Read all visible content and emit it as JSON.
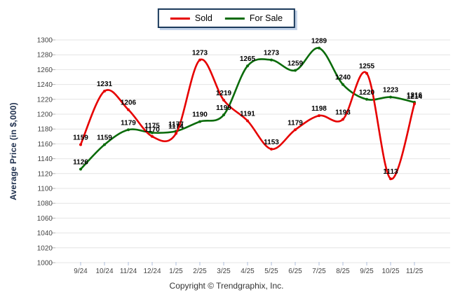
{
  "chart_data": {
    "type": "line",
    "title": "",
    "ylabel": "Average Price (in $,000)",
    "xlabel": "",
    "categories": [
      "9/24",
      "10/24",
      "11/24",
      "12/24",
      "1/25",
      "2/25",
      "3/25",
      "4/25",
      "5/25",
      "6/25",
      "7/25",
      "8/25",
      "9/25",
      "10/25",
      "11/25"
    ],
    "series": [
      {
        "name": "Sold",
        "color": "#e60000",
        "values": [
          1159,
          1231,
          1206,
          1170,
          1174,
          1273,
          1219,
          1191,
          1153,
          1179,
          1198,
          1193,
          1255,
          1113,
          1214
        ]
      },
      {
        "name": "For Sale",
        "color": "#0a6b0a",
        "values": [
          1126,
          1159,
          1179,
          1175,
          1177,
          1190,
          1199,
          1265,
          1273,
          1259,
          1289,
          1240,
          1220,
          1223,
          1216
        ]
      }
    ],
    "ylim": [
      1000,
      1300
    ],
    "yticks": [
      1000,
      1020,
      1040,
      1060,
      1080,
      1100,
      1120,
      1140,
      1160,
      1180,
      1200,
      1220,
      1240,
      1260,
      1280,
      1300
    ],
    "grid": "horizontal",
    "legend_position": "top",
    "point_labels": true
  },
  "legend": {
    "border_color": "#1b3a5c",
    "shadow_color": "#c2d2e8"
  },
  "footer": {
    "copyright": "Copyright © Trendgraphix, Inc."
  }
}
